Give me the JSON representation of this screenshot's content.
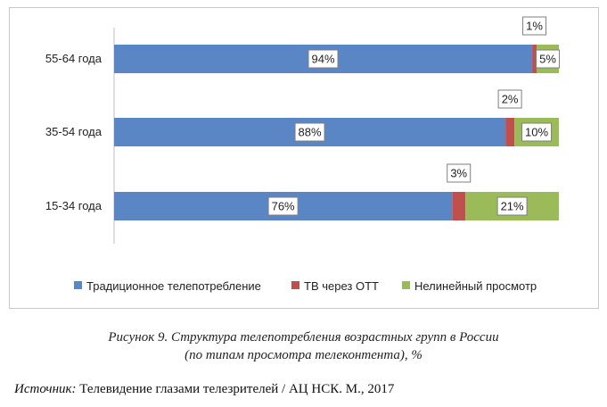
{
  "chart_data": {
    "type": "bar",
    "orientation": "horizontal",
    "stacked": true,
    "categories": [
      "55-64 года",
      "35-54 года",
      "15-34 года"
    ],
    "series": [
      {
        "name": "Традиционное телепотребление",
        "color": "#5b86c5",
        "values": [
          94,
          88,
          76
        ],
        "labels": [
          "94%",
          "88%",
          "76%"
        ]
      },
      {
        "name": "ТВ через ОТТ",
        "color": "#c0504d",
        "values": [
          1,
          2,
          3
        ],
        "labels": [
          "1%",
          "2%",
          "3%"
        ]
      },
      {
        "name": "Нелинейный просмотр",
        "color": "#9bbb59",
        "values": [
          5,
          10,
          21
        ],
        "labels": [
          "5%",
          "10%",
          "21%"
        ]
      }
    ],
    "xlim": [
      0,
      100
    ],
    "grid": false,
    "legend_position": "bottom"
  },
  "caption": {
    "line1": "Рисунок 9. Структура телепотребления возрастных групп в России",
    "line2": "(по типам просмотра телеконтента), %"
  },
  "source": {
    "label": "Источник:",
    "text": "Телевидение глазами телезрителей / АЦ НСК. М., 2017"
  }
}
